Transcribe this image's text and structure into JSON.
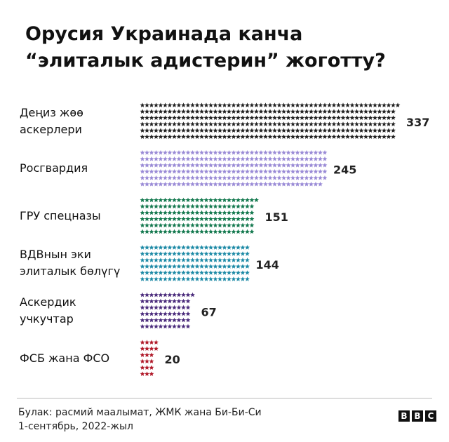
{
  "chart_data": {
    "type": "pictogram",
    "title": "Орусия Украинада канча\n“элиталык адистерин” жоготту?",
    "categories": [
      "Деңиз жөө\nаскерлери",
      "Росгвардия",
      "ГРУ спецназы",
      "ВДВнын эки\nэлиталык бөлүгү",
      "Аскердик\nучкучтар",
      "ФСБ жана ФСО"
    ],
    "values": [
      337,
      245,
      151,
      144,
      67,
      20
    ],
    "colors": [
      "#222222",
      "#9a8bd6",
      "#167a50",
      "#1d8aa6",
      "#4b2c7c",
      "#b01828"
    ],
    "source": "Булак: расмий маалымат, ЖМК жана Би-Би-Си\n1-сентябрь, 2022-жыл",
    "logo": [
      "B",
      "B",
      "C"
    ]
  }
}
